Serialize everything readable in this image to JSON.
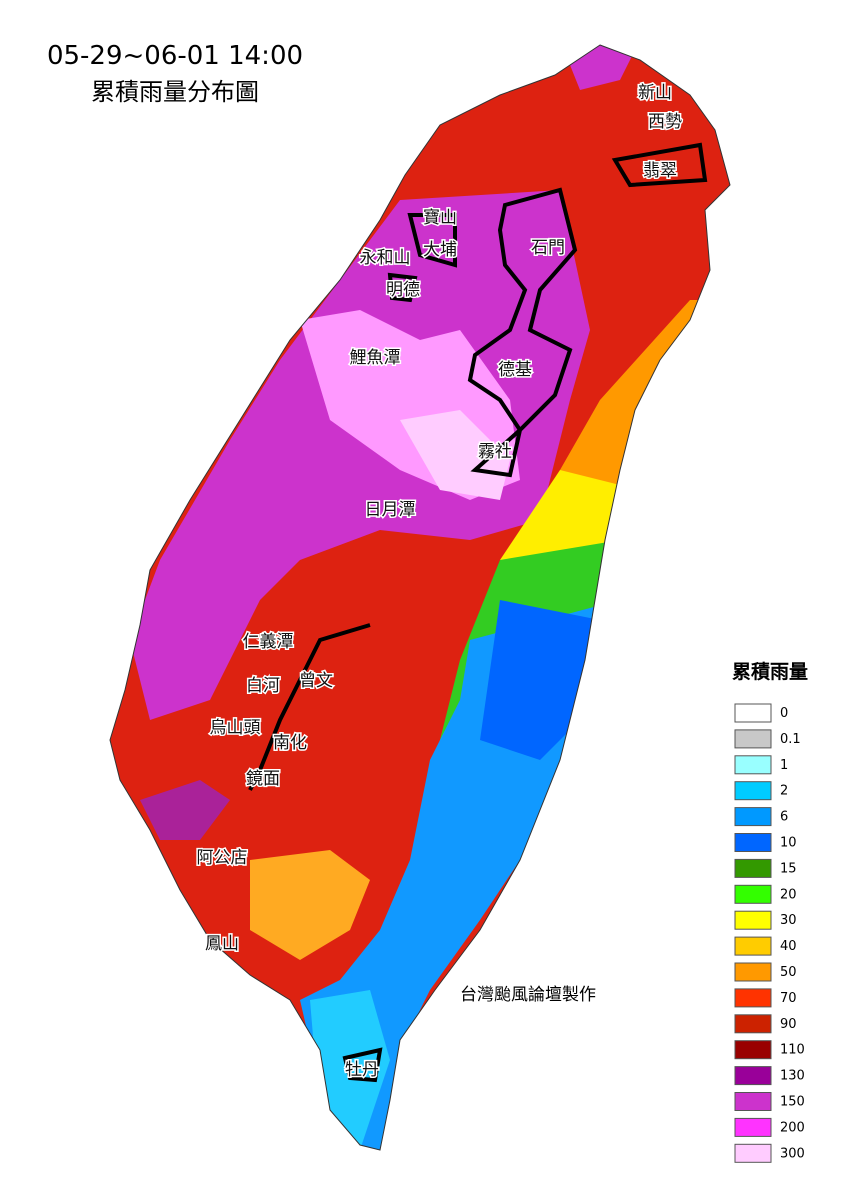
{
  "header": {
    "title": "05-29~06-01 14:00",
    "subtitle": "累積雨量分布圖"
  },
  "legend": {
    "title": "累積雨量",
    "items": [
      {
        "value": 0,
        "color": "#ffffff"
      },
      {
        "value": 0.1,
        "color": "#c8c8c8"
      },
      {
        "value": 1,
        "color": "#99ffff"
      },
      {
        "value": 2,
        "color": "#00ccff"
      },
      {
        "value": 6,
        "color": "#0099ff"
      },
      {
        "value": 10,
        "color": "#0066ff"
      },
      {
        "value": 15,
        "color": "#339900"
      },
      {
        "value": 20,
        "color": "#33ff00"
      },
      {
        "value": 30,
        "color": "#ffff00"
      },
      {
        "value": 40,
        "color": "#ffcc00"
      },
      {
        "value": 50,
        "color": "#ff9900"
      },
      {
        "value": 70,
        "color": "#ff3300"
      },
      {
        "value": 90,
        "color": "#cc2200"
      },
      {
        "value": 110,
        "color": "#990000"
      },
      {
        "value": 130,
        "color": "#990099"
      },
      {
        "value": 150,
        "color": "#cc33cc"
      },
      {
        "value": 200,
        "color": "#ff33ff"
      },
      {
        "value": 300,
        "color": "#ffccff"
      }
    ]
  },
  "labels": [
    "新山",
    "西勢",
    "翡翠",
    "寶山",
    "大埔",
    "永和山",
    "石門",
    "明德",
    "鯉魚潭",
    "德基",
    "霧社",
    "日月潭",
    "仁義潭",
    "白河",
    "曾文",
    "烏山頭",
    "南化",
    "鏡面",
    "阿公店",
    "鳳山",
    "牡丹"
  ],
  "credit": "台灣颱風論壇製作"
}
